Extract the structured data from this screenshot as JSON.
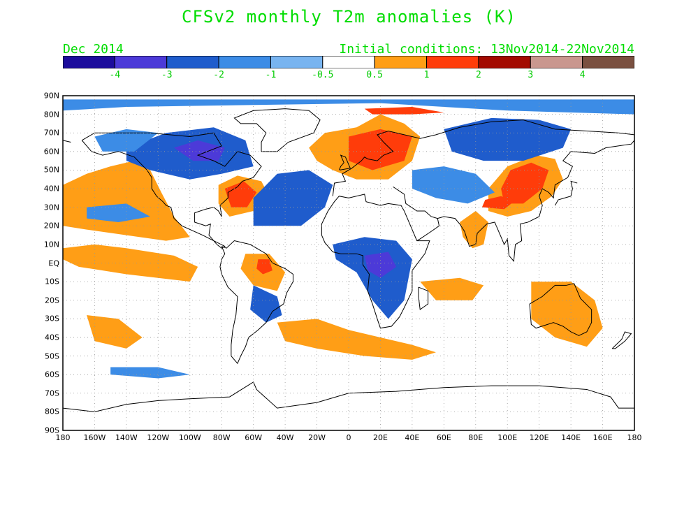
{
  "title": "CFSv2 monthly T2m anomalies (K)",
  "valid_month": "Dec 2014",
  "initial_conditions": "Initial conditions: 13Nov2014-22Nov2014",
  "colors": {
    "title_green": "#00dd00",
    "bins": [
      "#1c0c9c",
      "#4c3ad8",
      "#1f5ccc",
      "#3c8ce6",
      "#78b4f0",
      "#ffffff",
      "#ff9e16",
      "#ff3c0a",
      "#a30a00",
      "#c9978f",
      "#7a5040"
    ]
  },
  "colorbar": {
    "labels": [
      "-4",
      "-3",
      "-2",
      "-1",
      "-0.5",
      "0.5",
      "1",
      "2",
      "3",
      "4"
    ]
  },
  "map": {
    "lat_labels": [
      "90N",
      "80N",
      "70N",
      "60N",
      "50N",
      "40N",
      "30N",
      "20N",
      "10N",
      "EQ",
      "10S",
      "20S",
      "30S",
      "40S",
      "50S",
      "60S",
      "70S",
      "80S",
      "90S"
    ],
    "lon_labels": [
      "180",
      "160W",
      "140W",
      "120W",
      "100W",
      "80W",
      "60W",
      "40W",
      "20W",
      "0",
      "20E",
      "40E",
      "60E",
      "80E",
      "100E",
      "120E",
      "140E",
      "160E",
      "180"
    ],
    "lat_range": [
      -90,
      90
    ],
    "lon_range": [
      -180,
      180
    ],
    "grid": "dotted",
    "anomaly_regions": [
      {
        "name": "north-pacific-warm",
        "level": 1,
        "pts": [
          [
            -180,
            42
          ],
          [
            -165,
            48
          ],
          [
            -150,
            52
          ],
          [
            -135,
            55
          ],
          [
            -125,
            50
          ],
          [
            -118,
            38
          ],
          [
            -110,
            25
          ],
          [
            -100,
            14
          ],
          [
            -115,
            12
          ],
          [
            -140,
            15
          ],
          [
            -165,
            18
          ],
          [
            -180,
            20
          ]
        ]
      },
      {
        "name": "tropical-pacific-warm",
        "level": 1,
        "pts": [
          [
            -180,
            8
          ],
          [
            -160,
            10
          ],
          [
            -140,
            8
          ],
          [
            -110,
            4
          ],
          [
            -95,
            -2
          ],
          [
            -100,
            -10
          ],
          [
            -140,
            -6
          ],
          [
            -170,
            -2
          ],
          [
            -180,
            2
          ]
        ]
      },
      {
        "name": "south-pacific-warm",
        "level": 1,
        "pts": [
          [
            -165,
            -28
          ],
          [
            -145,
            -30
          ],
          [
            -130,
            -40
          ],
          [
            -140,
            -46
          ],
          [
            -160,
            -42
          ]
        ]
      },
      {
        "name": "us-east-warm",
        "level": 1,
        "pts": [
          [
            -82,
            42
          ],
          [
            -70,
            47
          ],
          [
            -55,
            44
          ],
          [
            -50,
            36
          ],
          [
            -60,
            28
          ],
          [
            -75,
            25
          ],
          [
            -82,
            32
          ]
        ]
      },
      {
        "name": "us-east-hot",
        "level": 2,
        "pts": [
          [
            -78,
            40
          ],
          [
            -66,
            44
          ],
          [
            -58,
            38
          ],
          [
            -64,
            30
          ],
          [
            -74,
            30
          ]
        ]
      },
      {
        "name": "greenland-east-warm",
        "level": 1,
        "pts": [
          [
            -25,
            62
          ],
          [
            -15,
            70
          ],
          [
            5,
            73
          ],
          [
            20,
            80
          ],
          [
            35,
            75
          ],
          [
            45,
            68
          ],
          [
            40,
            55
          ],
          [
            25,
            45
          ],
          [
            5,
            45
          ],
          [
            -10,
            50
          ],
          [
            -20,
            55
          ]
        ]
      },
      {
        "name": "scandinavia-hot",
        "level": 2,
        "pts": [
          [
            0,
            68
          ],
          [
            20,
            72
          ],
          [
            40,
            68
          ],
          [
            35,
            55
          ],
          [
            15,
            50
          ],
          [
            0,
            55
          ]
        ]
      },
      {
        "name": "arctic-warm",
        "level": 2,
        "pts": [
          [
            10,
            83
          ],
          [
            40,
            84
          ],
          [
            60,
            81
          ],
          [
            40,
            80
          ],
          [
            15,
            80
          ]
        ]
      },
      {
        "name": "asia-warm",
        "level": 1,
        "pts": [
          [
            88,
            28
          ],
          [
            100,
            25
          ],
          [
            115,
            28
          ],
          [
            128,
            36
          ],
          [
            135,
            45
          ],
          [
            130,
            56
          ],
          [
            118,
            58
          ],
          [
            100,
            52
          ],
          [
            88,
            40
          ]
        ]
      },
      {
        "name": "asia-hot",
        "level": 2,
        "pts": [
          [
            98,
            32
          ],
          [
            110,
            32
          ],
          [
            122,
            40
          ],
          [
            126,
            50
          ],
          [
            115,
            54
          ],
          [
            102,
            50
          ],
          [
            96,
            40
          ]
        ]
      },
      {
        "name": "tibet-hot",
        "level": 2,
        "pts": [
          [
            84,
            30
          ],
          [
            98,
            29
          ],
          [
            104,
            33
          ],
          [
            96,
            36
          ],
          [
            86,
            34
          ]
        ]
      },
      {
        "name": "india-warm",
        "level": 1,
        "pts": [
          [
            70,
            22
          ],
          [
            80,
            28
          ],
          [
            88,
            22
          ],
          [
            85,
            10
          ],
          [
            78,
            8
          ],
          [
            72,
            14
          ]
        ]
      },
      {
        "name": "amazon-warm",
        "level": 1,
        "pts": [
          [
            -65,
            5
          ],
          [
            -50,
            5
          ],
          [
            -40,
            -5
          ],
          [
            -45,
            -15
          ],
          [
            -60,
            -12
          ],
          [
            -68,
            -3
          ]
        ]
      },
      {
        "name": "amazon-hot",
        "level": 2,
        "pts": [
          [
            -57,
            2
          ],
          [
            -50,
            2
          ],
          [
            -48,
            -4
          ],
          [
            -54,
            -6
          ],
          [
            -58,
            -3
          ]
        ]
      },
      {
        "name": "south-atlantic-warm",
        "level": 1,
        "pts": [
          [
            -45,
            -32
          ],
          [
            -20,
            -30
          ],
          [
            0,
            -36
          ],
          [
            20,
            -40
          ],
          [
            40,
            -44
          ],
          [
            55,
            -48
          ],
          [
            40,
            -52
          ],
          [
            10,
            -50
          ],
          [
            -20,
            -46
          ],
          [
            -40,
            -42
          ]
        ]
      },
      {
        "name": "indian-ocean-warm",
        "level": 1,
        "pts": [
          [
            45,
            -10
          ],
          [
            70,
            -8
          ],
          [
            85,
            -12
          ],
          [
            78,
            -20
          ],
          [
            55,
            -20
          ]
        ]
      },
      {
        "name": "australia-warm",
        "level": 1,
        "pts": [
          [
            115,
            -10
          ],
          [
            140,
            -10
          ],
          [
            155,
            -20
          ],
          [
            160,
            -35
          ],
          [
            150,
            -45
          ],
          [
            130,
            -40
          ],
          [
            115,
            -30
          ]
        ]
      },
      {
        "name": "north-atlantic-cold",
        "level": -2,
        "pts": [
          [
            -60,
            20
          ],
          [
            -30,
            20
          ],
          [
            -15,
            30
          ],
          [
            -10,
            42
          ],
          [
            -25,
            50
          ],
          [
            -45,
            48
          ],
          [
            -60,
            35
          ]
        ]
      },
      {
        "name": "canada-cold",
        "level": -2,
        "pts": [
          [
            -140,
            62
          ],
          [
            -115,
            70
          ],
          [
            -85,
            73
          ],
          [
            -65,
            66
          ],
          [
            -60,
            52
          ],
          [
            -80,
            48
          ],
          [
            -100,
            45
          ],
          [
            -125,
            50
          ],
          [
            -140,
            55
          ]
        ]
      },
      {
        "name": "canada-very-cold",
        "level": -3,
        "pts": [
          [
            -110,
            62
          ],
          [
            -95,
            66
          ],
          [
            -78,
            62
          ],
          [
            -82,
            55
          ],
          [
            -98,
            55
          ]
        ]
      },
      {
        "name": "north-america-west-cool",
        "level": -1,
        "pts": [
          [
            -160,
            68
          ],
          [
            -140,
            72
          ],
          [
            -120,
            70
          ],
          [
            -135,
            60
          ],
          [
            -155,
            60
          ]
        ]
      },
      {
        "name": "africa-cold",
        "level": -2,
        "pts": [
          [
            -10,
            10
          ],
          [
            10,
            14
          ],
          [
            30,
            12
          ],
          [
            40,
            2
          ],
          [
            35,
            -20
          ],
          [
            25,
            -30
          ],
          [
            15,
            -20
          ],
          [
            5,
            -5
          ],
          [
            -8,
            2
          ]
        ]
      },
      {
        "name": "africa-very-cold",
        "level": -3,
        "pts": [
          [
            10,
            4
          ],
          [
            25,
            6
          ],
          [
            30,
            -2
          ],
          [
            20,
            -8
          ],
          [
            12,
            -4
          ]
        ]
      },
      {
        "name": "russia-cold",
        "level": -2,
        "pts": [
          [
            60,
            72
          ],
          [
            90,
            78
          ],
          [
            120,
            77
          ],
          [
            140,
            72
          ],
          [
            135,
            62
          ],
          [
            110,
            55
          ],
          [
            85,
            55
          ],
          [
            65,
            60
          ]
        ]
      },
      {
        "name": "central-asia-cold",
        "level": -1,
        "pts": [
          [
            40,
            50
          ],
          [
            60,
            52
          ],
          [
            80,
            48
          ],
          [
            92,
            38
          ],
          [
            75,
            32
          ],
          [
            55,
            35
          ],
          [
            40,
            40
          ]
        ]
      },
      {
        "name": "arctic-ocean-cool",
        "level": -1,
        "pts": [
          [
            -180,
            88
          ],
          [
            180,
            88
          ],
          [
            180,
            80
          ],
          [
            100,
            82
          ],
          [
            20,
            86
          ],
          [
            -60,
            85
          ],
          [
            -140,
            84
          ],
          [
            -180,
            82
          ]
        ]
      },
      {
        "name": "south-america-cold",
        "level": -2,
        "pts": [
          [
            -60,
            -12
          ],
          [
            -45,
            -18
          ],
          [
            -42,
            -28
          ],
          [
            -52,
            -32
          ],
          [
            -62,
            -25
          ]
        ]
      },
      {
        "name": "southern-ocean-cool",
        "level": -1,
        "pts": [
          [
            -150,
            -56
          ],
          [
            -120,
            -56
          ],
          [
            -100,
            -60
          ],
          [
            -120,
            -62
          ],
          [
            -150,
            -60
          ]
        ]
      },
      {
        "name": "pacific-subtropic-cool",
        "level": -1,
        "pts": [
          [
            -165,
            30
          ],
          [
            -140,
            32
          ],
          [
            -125,
            25
          ],
          [
            -145,
            22
          ],
          [
            -165,
            24
          ]
        ]
      }
    ]
  }
}
